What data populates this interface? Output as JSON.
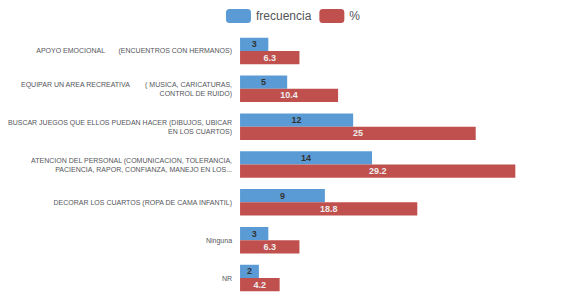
{
  "chart_data": {
    "type": "bar",
    "orientation": "horizontal",
    "categories": [
      "NR",
      "Ninguna",
      "DECORAR LOS CUARTOS (ROPA DE CAMA INFANTIL)",
      "ATENCION DEL PERSONAL (COMUNICACION, TOLERANCIA,\nPACIENCIA, RAPOR, CONFIANZA, MANEJO EN LOS...",
      "BUSCAR JUEGOS QUE ELLOS PUEDAN HACER (DIBUJOS, UBICAR\nEN LOS CUARTOS)",
      "EQUIPAR UN AREA RECREATIVA        ( MUSICA, CARICATURAS,\nCONTROL DE RUIDO)",
      "APOYO EMOCIONAL       (ENCUENTROS CON HERMANOS)"
    ],
    "series": [
      {
        "name": "frecuencia",
        "color": "#5B9BD5",
        "values": [
          2,
          3,
          9,
          14,
          12,
          5,
          3
        ]
      },
      {
        "name": "%",
        "color": "#C0504D",
        "values": [
          4.2,
          6.3,
          18.8,
          29.2,
          25,
          10.4,
          6.3
        ]
      }
    ],
    "xlim": [
      0,
      35
    ],
    "data_labels": true,
    "tick_labels": "y",
    "grid": false,
    "legend": "top"
  }
}
